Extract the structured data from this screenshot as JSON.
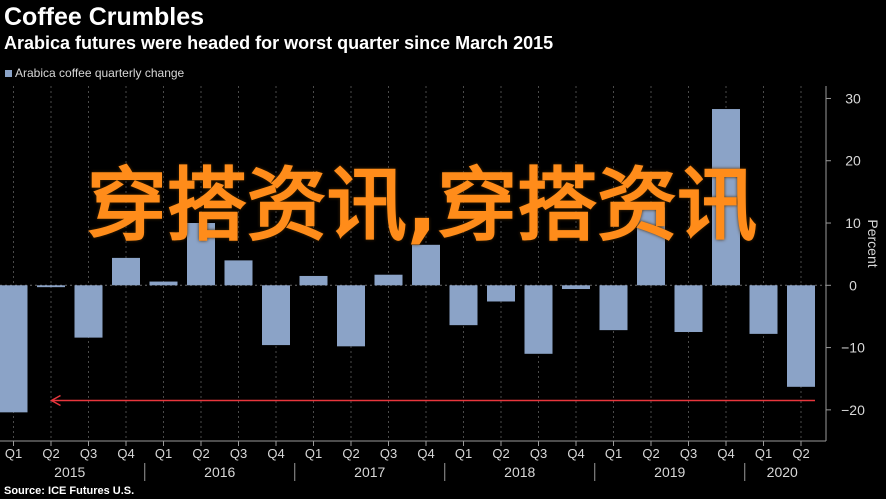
{
  "header": {
    "title": "Coffee Crumbles",
    "subtitle": "Arabica futures were headed for worst quarter since March 2015"
  },
  "legend": {
    "label": "Arabica coffee quarterly change"
  },
  "source": "Source: ICE Futures U.S.",
  "watermark": "穿搭资讯,穿搭资讯",
  "colors": {
    "bar": "#8ba3c7",
    "arrow": "#e8363d",
    "background": "#000000",
    "watermark": "#ff8c1a"
  },
  "chart_data": {
    "type": "bar",
    "title": "Coffee Crumbles",
    "subtitle": "Arabica futures were headed for worst quarter since March 2015",
    "ylabel": "Percent",
    "ylim": [
      -25,
      32
    ],
    "yticks": [
      30,
      20,
      10,
      0,
      -10,
      -20
    ],
    "y_axis_side": "right",
    "grid": "vertical dashed",
    "legend_position": "top-left",
    "categories": [
      "Q1",
      "Q2",
      "Q3",
      "Q4",
      "Q1",
      "Q2",
      "Q3",
      "Q4",
      "Q1",
      "Q2",
      "Q3",
      "Q4",
      "Q1",
      "Q2",
      "Q3",
      "Q4",
      "Q1",
      "Q2",
      "Q3",
      "Q4",
      "Q1",
      "Q2"
    ],
    "year_labels": [
      {
        "label": "2015",
        "start": 0,
        "end": 3
      },
      {
        "label": "2016",
        "start": 4,
        "end": 7
      },
      {
        "label": "2017",
        "start": 8,
        "end": 11
      },
      {
        "label": "2018",
        "start": 12,
        "end": 15
      },
      {
        "label": "2019",
        "start": 16,
        "end": 19
      },
      {
        "label": "2020",
        "start": 20,
        "end": 21
      }
    ],
    "series": [
      {
        "name": "Arabica coffee quarterly change",
        "values": [
          -20.4,
          -0.3,
          -8.4,
          4.4,
          0.6,
          10.0,
          4.0,
          -9.6,
          1.5,
          -9.8,
          1.7,
          6.5,
          -6.4,
          -2.6,
          -11.0,
          -0.6,
          -7.2,
          12.5,
          -7.5,
          28.3,
          -7.8,
          -16.3
        ]
      }
    ],
    "annotations": [
      {
        "type": "arrow",
        "from_index": 21,
        "to_index": 0,
        "y": -18.5
      }
    ]
  }
}
